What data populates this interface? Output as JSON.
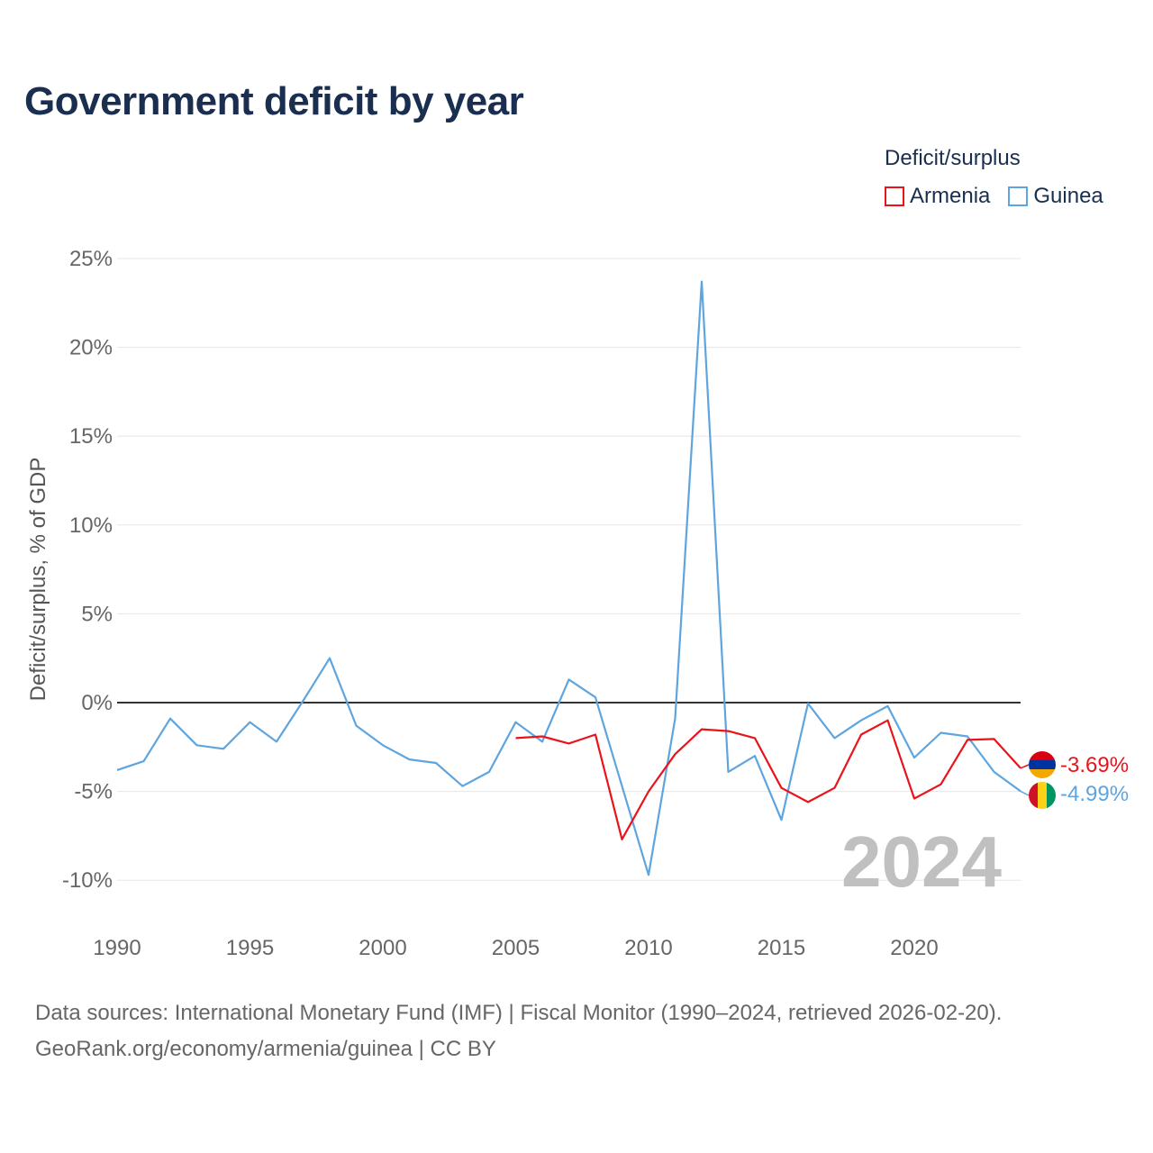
{
  "title": "Government deficit by year",
  "legend": {
    "title": "Deficit/surplus",
    "items": [
      {
        "label": "Armenia",
        "color": "#e8141b"
      },
      {
        "label": "Guinea",
        "color": "#5ea5e0"
      }
    ]
  },
  "footer": {
    "line1": "Data sources: International Monetary Fund (IMF) | Fiscal Monitor (1990–2024, retrieved 2026-02-20).",
    "line2": "GeoRank.org/economy/armenia/guinea | CC BY"
  },
  "year_label": "2024",
  "chart_data": {
    "type": "line",
    "title": "Government deficit by year",
    "ylabel": "Deficit/surplus, % of GDP",
    "xlabel": "",
    "xlim": [
      1990,
      2024
    ],
    "ylim": [
      -12,
      25
    ],
    "x_ticks": [
      1990,
      1995,
      2000,
      2005,
      2010,
      2015,
      2020
    ],
    "x_tick_labels": [
      "1990",
      "1995",
      "2000",
      "2005",
      "2010",
      "2015",
      "2020"
    ],
    "y_ticks": [
      25,
      20,
      15,
      10,
      5,
      0,
      -5,
      -10
    ],
    "y_tick_labels": [
      "25%",
      "20%",
      "15%",
      "10%",
      "5%",
      "0%",
      "-5%",
      "-10%"
    ],
    "series": [
      {
        "name": "Armenia",
        "color": "#e8141b",
        "end_label": "-3.69%",
        "x": [
          2005,
          2006,
          2007,
          2008,
          2009,
          2010,
          2011,
          2012,
          2013,
          2014,
          2015,
          2016,
          2017,
          2018,
          2019,
          2020,
          2021,
          2022,
          2023,
          2024
        ],
        "values": [
          -2.0,
          -1.9,
          -2.3,
          -1.8,
          -7.7,
          -5.0,
          -2.9,
          -1.5,
          -1.6,
          -2.0,
          -4.8,
          -5.6,
          -4.8,
          -1.8,
          -1.0,
          -5.4,
          -4.6,
          -2.1,
          -2.05,
          -3.69
        ]
      },
      {
        "name": "Guinea",
        "color": "#5ea5e0",
        "end_label": "-4.99%",
        "x": [
          1990,
          1991,
          1992,
          1993,
          1994,
          1995,
          1996,
          1997,
          1998,
          1999,
          2000,
          2001,
          2002,
          2003,
          2004,
          2005,
          2006,
          2007,
          2008,
          2009,
          2010,
          2011,
          2012,
          2013,
          2014,
          2015,
          2016,
          2017,
          2018,
          2019,
          2020,
          2021,
          2022,
          2023,
          2024
        ],
        "values": [
          -3.8,
          -3.3,
          -0.9,
          -2.4,
          -2.6,
          -1.1,
          -2.2,
          0.1,
          2.5,
          -1.3,
          -2.4,
          -3.2,
          -3.4,
          -4.7,
          -3.9,
          -1.1,
          -2.2,
          1.3,
          0.3,
          -4.7,
          -9.7,
          -0.9,
          23.7,
          -3.9,
          -3.0,
          -6.6,
          -0.05,
          -2.0,
          -1.0,
          -0.2,
          -3.1,
          -1.7,
          -1.9,
          -3.9,
          -4.99
        ]
      }
    ],
    "zero_line": true,
    "grid": true,
    "legend_position": "top-right"
  }
}
